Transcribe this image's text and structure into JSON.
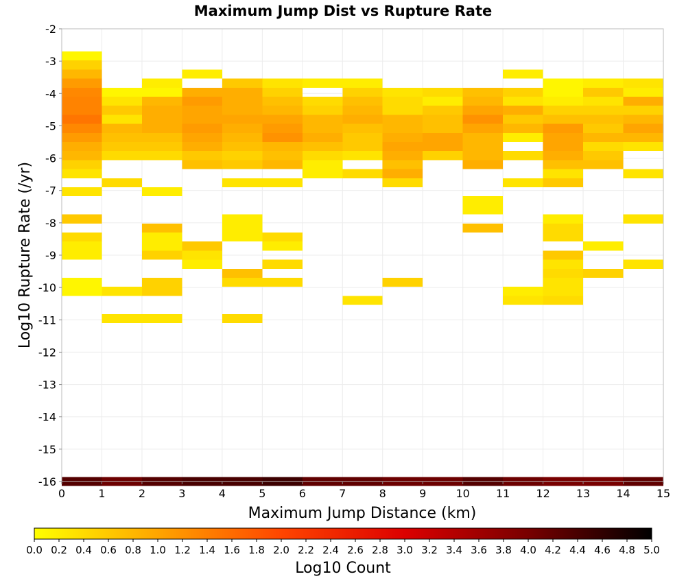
{
  "chart_data": {
    "type": "heatmap",
    "title": "Maximum Jump Dist vs Rupture Rate",
    "xlabel": "Maximum Jump Distance (km)",
    "ylabel": "Log10 Rupture Rate (/yr)",
    "xlim": [
      0,
      15
    ],
    "ylim": [
      -16,
      -2
    ],
    "x_ticks": [
      "0",
      "1",
      "2",
      "3",
      "4",
      "5",
      "6",
      "7",
      "8",
      "9",
      "10",
      "11",
      "12",
      "13",
      "14",
      "15"
    ],
    "y_ticks": [
      "-2",
      "-3",
      "-4",
      "-5",
      "-6",
      "-7",
      "-8",
      "-9",
      "-10",
      "-11",
      "-12",
      "-13",
      "-14",
      "-15",
      "-16"
    ],
    "x_bin_width": 1,
    "y_bin_height": 0.28,
    "grid": true,
    "colorbar": {
      "label": "Log10 Count",
      "range": [
        0.0,
        5.0
      ],
      "ticks": [
        "0.0",
        "0.2",
        "0.4",
        "0.6",
        "0.8",
        "1.0",
        "1.2",
        "1.4",
        "1.6",
        "1.8",
        "2.0",
        "2.2",
        "2.4",
        "2.6",
        "2.8",
        "3.0",
        "3.2",
        "3.4",
        "3.6",
        "3.8",
        "4.0",
        "4.2",
        "4.4",
        "4.6",
        "4.8",
        "5.0"
      ],
      "colors": [
        "#ffff00",
        "#ffa500",
        "#ff4500",
        "#dc0000",
        "#780000",
        "#000000"
      ]
    },
    "cells": [
      [
        0.5,
        -2.84,
        0.1
      ],
      [
        0.5,
        -3.12,
        0.5
      ],
      [
        0.5,
        -3.4,
        0.8
      ],
      [
        0.5,
        -3.68,
        1.1
      ],
      [
        0.5,
        -3.96,
        1.3
      ],
      [
        0.5,
        -4.24,
        1.35
      ],
      [
        0.5,
        -4.52,
        1.35
      ],
      [
        0.5,
        -4.8,
        1.5
      ],
      [
        0.5,
        -5.08,
        1.3
      ],
      [
        0.5,
        -5.36,
        1.1
      ],
      [
        0.5,
        -5.64,
        0.9
      ],
      [
        0.5,
        -5.92,
        0.8
      ],
      [
        0.5,
        -6.2,
        0.5
      ],
      [
        0.5,
        -6.48,
        0.3
      ],
      [
        0.5,
        -7.04,
        0.3
      ],
      [
        0.5,
        -7.88,
        0.6
      ],
      [
        0.5,
        -8.44,
        0.4
      ],
      [
        0.5,
        -8.72,
        0.2
      ],
      [
        0.5,
        -9.0,
        0.2
      ],
      [
        0.5,
        -9.84,
        0.1
      ],
      [
        0.5,
        -10.12,
        0.1
      ],
      [
        1.5,
        -3.96,
        0.1
      ],
      [
        1.5,
        -4.24,
        0.3
      ],
      [
        1.5,
        -4.52,
        0.6
      ],
      [
        1.5,
        -4.8,
        0.3
      ],
      [
        1.5,
        -5.08,
        0.8
      ],
      [
        1.5,
        -5.36,
        0.7
      ],
      [
        1.5,
        -5.64,
        0.6
      ],
      [
        1.5,
        -5.92,
        0.4
      ],
      [
        1.5,
        -6.76,
        0.4
      ],
      [
        1.5,
        -10.12,
        0.3
      ],
      [
        1.5,
        -10.96,
        0.3
      ],
      [
        2.5,
        -3.68,
        0.2
      ],
      [
        2.5,
        -3.96,
        0.1
      ],
      [
        2.5,
        -4.24,
        0.8
      ],
      [
        2.5,
        -4.52,
        0.9
      ],
      [
        2.5,
        -4.8,
        0.9
      ],
      [
        2.5,
        -5.08,
        0.9
      ],
      [
        2.5,
        -5.36,
        0.7
      ],
      [
        2.5,
        -5.64,
        0.6
      ],
      [
        2.5,
        -5.92,
        0.4
      ],
      [
        2.5,
        -7.04,
        0.2
      ],
      [
        2.5,
        -8.16,
        0.7
      ],
      [
        2.5,
        -8.44,
        0.2
      ],
      [
        2.5,
        -8.72,
        0.2
      ],
      [
        2.5,
        -9.0,
        0.5
      ],
      [
        2.5,
        -9.84,
        0.5
      ],
      [
        2.5,
        -10.12,
        0.5
      ],
      [
        2.5,
        -10.96,
        0.3
      ],
      [
        3.5,
        -3.4,
        0.2
      ],
      [
        3.5,
        -3.96,
        0.9
      ],
      [
        3.5,
        -4.24,
        1.1
      ],
      [
        3.5,
        -4.52,
        1.0
      ],
      [
        3.5,
        -4.8,
        1.0
      ],
      [
        3.5,
        -5.08,
        1.1
      ],
      [
        3.5,
        -5.36,
        1.0
      ],
      [
        3.5,
        -5.64,
        0.9
      ],
      [
        3.5,
        -5.92,
        0.6
      ],
      [
        3.5,
        -6.2,
        0.7
      ],
      [
        3.5,
        -8.72,
        0.6
      ],
      [
        3.5,
        -9.0,
        0.3
      ],
      [
        3.5,
        -9.28,
        0.2
      ],
      [
        4.5,
        -3.68,
        0.6
      ],
      [
        4.5,
        -3.96,
        0.9
      ],
      [
        4.5,
        -4.24,
        0.9
      ],
      [
        4.5,
        -4.52,
        0.9
      ],
      [
        4.5,
        -4.8,
        1.0
      ],
      [
        4.5,
        -5.08,
        0.9
      ],
      [
        4.5,
        -5.36,
        0.8
      ],
      [
        4.5,
        -5.64,
        0.7
      ],
      [
        4.5,
        -5.92,
        0.5
      ],
      [
        4.5,
        -6.2,
        0.6
      ],
      [
        4.5,
        -6.76,
        0.3
      ],
      [
        4.5,
        -7.88,
        0.2
      ],
      [
        4.5,
        -8.16,
        0.2
      ],
      [
        4.5,
        -8.44,
        0.2
      ],
      [
        4.5,
        -9.56,
        0.7
      ],
      [
        4.5,
        -9.84,
        0.4
      ],
      [
        4.5,
        -10.96,
        0.4
      ],
      [
        5.5,
        -3.68,
        0.3
      ],
      [
        5.5,
        -3.96,
        0.5
      ],
      [
        5.5,
        -4.24,
        0.7
      ],
      [
        5.5,
        -4.52,
        0.8
      ],
      [
        5.5,
        -4.8,
        1.0
      ],
      [
        5.5,
        -5.08,
        1.1
      ],
      [
        5.5,
        -5.36,
        1.2
      ],
      [
        5.5,
        -5.64,
        0.8
      ],
      [
        5.5,
        -5.92,
        0.7
      ],
      [
        5.5,
        -6.2,
        0.8
      ],
      [
        5.5,
        -6.76,
        0.3
      ],
      [
        5.5,
        -8.44,
        0.4
      ],
      [
        5.5,
        -8.72,
        0.2
      ],
      [
        5.5,
        -9.28,
        0.4
      ],
      [
        5.5,
        -9.84,
        0.4
      ],
      [
        6.5,
        -3.68,
        0.2
      ],
      [
        6.5,
        -4.24,
        0.4
      ],
      [
        6.5,
        -4.52,
        0.5
      ],
      [
        6.5,
        -4.8,
        0.8
      ],
      [
        6.5,
        -5.08,
        0.8
      ],
      [
        6.5,
        -5.36,
        0.9
      ],
      [
        6.5,
        -5.64,
        0.7
      ],
      [
        6.5,
        -5.92,
        0.4
      ],
      [
        6.5,
        -6.2,
        0.2
      ],
      [
        6.5,
        -6.48,
        0.2
      ],
      [
        7.5,
        -3.68,
        0.2
      ],
      [
        7.5,
        -3.96,
        0.5
      ],
      [
        7.5,
        -4.24,
        0.7
      ],
      [
        7.5,
        -4.52,
        0.8
      ],
      [
        7.5,
        -4.8,
        0.9
      ],
      [
        7.5,
        -5.08,
        0.7
      ],
      [
        7.5,
        -5.36,
        0.6
      ],
      [
        7.5,
        -5.64,
        0.6
      ],
      [
        7.5,
        -5.92,
        0.3
      ],
      [
        7.5,
        -6.48,
        0.4
      ],
      [
        7.5,
        -10.4,
        0.3
      ],
      [
        8.5,
        -3.96,
        0.3
      ],
      [
        8.5,
        -4.24,
        0.4
      ],
      [
        8.5,
        -4.52,
        0.4
      ],
      [
        8.5,
        -4.8,
        0.8
      ],
      [
        8.5,
        -5.08,
        0.8
      ],
      [
        8.5,
        -5.36,
        0.9
      ],
      [
        8.5,
        -5.64,
        1.0
      ],
      [
        8.5,
        -5.92,
        0.9
      ],
      [
        8.5,
        -6.2,
        0.7
      ],
      [
        8.5,
        -6.48,
        0.9
      ],
      [
        8.5,
        -6.76,
        0.4
      ],
      [
        8.5,
        -9.84,
        0.5
      ],
      [
        9.5,
        -3.96,
        0.4
      ],
      [
        9.5,
        -4.24,
        0.2
      ],
      [
        9.5,
        -4.52,
        0.6
      ],
      [
        9.5,
        -4.8,
        0.7
      ],
      [
        9.5,
        -5.08,
        0.7
      ],
      [
        9.5,
        -5.36,
        1.0
      ],
      [
        9.5,
        -5.64,
        1.0
      ],
      [
        9.5,
        -5.92,
        0.5
      ],
      [
        10.5,
        -3.96,
        0.7
      ],
      [
        10.5,
        -4.24,
        0.8
      ],
      [
        10.5,
        -4.52,
        1.0
      ],
      [
        10.5,
        -4.8,
        1.2
      ],
      [
        10.5,
        -5.08,
        1.0
      ],
      [
        10.5,
        -5.36,
        0.8
      ],
      [
        10.5,
        -5.64,
        0.8
      ],
      [
        10.5,
        -5.92,
        0.8
      ],
      [
        10.5,
        -6.2,
        0.9
      ],
      [
        10.5,
        -7.32,
        0.2
      ],
      [
        10.5,
        -7.6,
        0.2
      ],
      [
        10.5,
        -8.16,
        0.7
      ],
      [
        11.5,
        -3.4,
        0.2
      ],
      [
        11.5,
        -3.96,
        0.5
      ],
      [
        11.5,
        -4.24,
        0.3
      ],
      [
        11.5,
        -4.52,
        0.9
      ],
      [
        11.5,
        -4.8,
        0.6
      ],
      [
        11.5,
        -5.08,
        0.8
      ],
      [
        11.5,
        -5.36,
        0.2
      ],
      [
        11.5,
        -5.92,
        0.4
      ],
      [
        11.5,
        -6.76,
        0.3
      ],
      [
        11.5,
        -10.12,
        0.2
      ],
      [
        11.5,
        -10.4,
        0.3
      ],
      [
        12.5,
        -3.68,
        0.1
      ],
      [
        12.5,
        -3.96,
        0.1
      ],
      [
        12.5,
        -4.24,
        0.2
      ],
      [
        12.5,
        -4.52,
        0.5
      ],
      [
        12.5,
        -4.8,
        0.7
      ],
      [
        12.5,
        -5.08,
        1.1
      ],
      [
        12.5,
        -5.36,
        1.0
      ],
      [
        12.5,
        -5.64,
        1.0
      ],
      [
        12.5,
        -5.92,
        0.9
      ],
      [
        12.5,
        -6.2,
        0.7
      ],
      [
        12.5,
        -6.48,
        0.3
      ],
      [
        12.5,
        -6.76,
        0.6
      ],
      [
        12.5,
        -7.88,
        0.2
      ],
      [
        12.5,
        -8.16,
        0.4
      ],
      [
        12.5,
        -8.44,
        0.4
      ],
      [
        12.5,
        -9.0,
        0.6
      ],
      [
        12.5,
        -9.28,
        0.3
      ],
      [
        12.5,
        -9.56,
        0.4
      ],
      [
        12.5,
        -9.84,
        0.3
      ],
      [
        12.5,
        -10.12,
        0.3
      ],
      [
        12.5,
        -10.4,
        0.4
      ],
      [
        13.5,
        -3.68,
        0.2
      ],
      [
        13.5,
        -3.96,
        0.6
      ],
      [
        13.5,
        -4.24,
        0.3
      ],
      [
        13.5,
        -4.52,
        0.5
      ],
      [
        13.5,
        -4.8,
        0.7
      ],
      [
        13.5,
        -5.08,
        0.6
      ],
      [
        13.5,
        -5.36,
        0.8
      ],
      [
        13.5,
        -5.64,
        0.4
      ],
      [
        13.5,
        -5.92,
        0.6
      ],
      [
        13.5,
        -6.2,
        0.7
      ],
      [
        13.5,
        -8.72,
        0.2
      ],
      [
        13.5,
        -9.56,
        0.5
      ],
      [
        14.5,
        -3.68,
        0.3
      ],
      [
        14.5,
        -3.96,
        0.2
      ],
      [
        14.5,
        -4.24,
        0.9
      ],
      [
        14.5,
        -4.52,
        0.5
      ],
      [
        14.5,
        -4.8,
        0.8
      ],
      [
        14.5,
        -5.08,
        1.0
      ],
      [
        14.5,
        -5.36,
        0.8
      ],
      [
        14.5,
        -5.64,
        0.3
      ],
      [
        14.5,
        -6.48,
        0.3
      ],
      [
        14.5,
        -7.88,
        0.3
      ],
      [
        14.5,
        -9.28,
        0.3
      ],
      [
        0.5,
        -16.0,
        4.3
      ],
      [
        1.5,
        -16.0,
        4.1
      ],
      [
        2.5,
        -16.0,
        4.3
      ],
      [
        3.5,
        -16.0,
        4.4
      ],
      [
        4.5,
        -16.0,
        4.4
      ],
      [
        5.5,
        -16.0,
        4.5
      ],
      [
        6.5,
        -16.0,
        4.2
      ],
      [
        7.5,
        -16.0,
        4.2
      ],
      [
        8.5,
        -16.0,
        4.1
      ],
      [
        9.5,
        -16.0,
        4.1
      ],
      [
        10.5,
        -16.0,
        4.3
      ],
      [
        11.5,
        -16.0,
        4.1
      ],
      [
        12.5,
        -16.0,
        4.0
      ],
      [
        13.5,
        -16.0,
        4.0
      ],
      [
        14.5,
        -16.0,
        4.2
      ]
    ]
  }
}
